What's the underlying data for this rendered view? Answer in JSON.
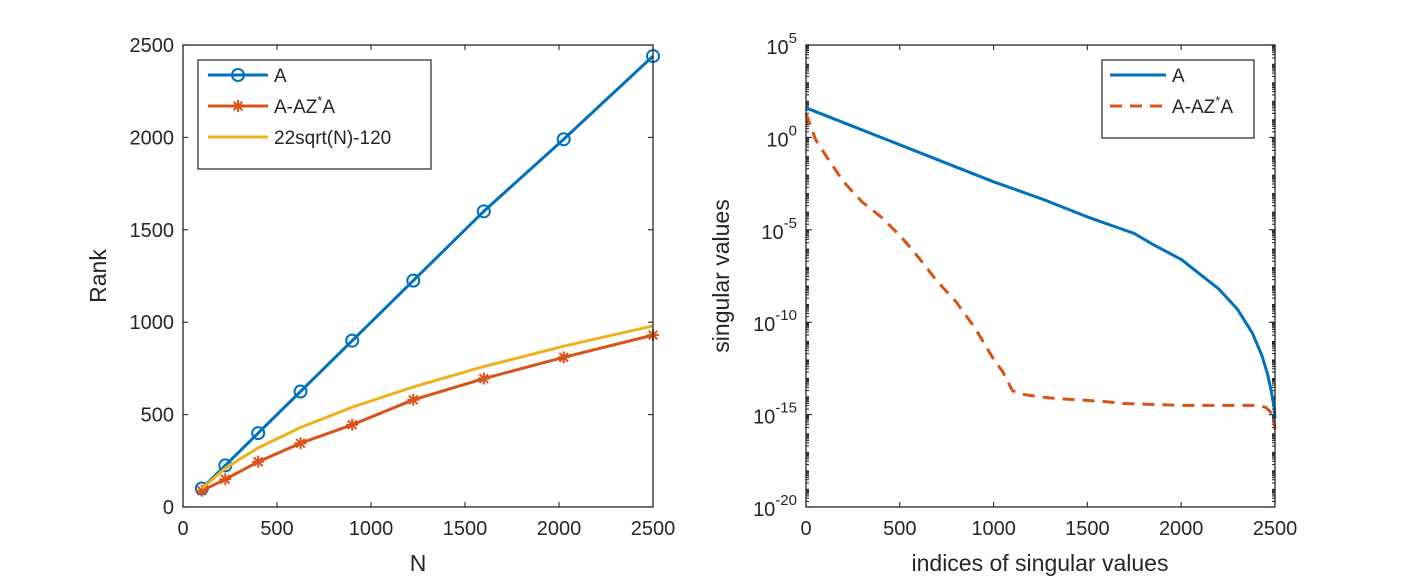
{
  "colors": {
    "blue": "#0072BD",
    "orange": "#D95319",
    "yellow": "#EDB120",
    "axis": "#262626",
    "background": "#ffffff"
  },
  "chart_data": [
    {
      "type": "line",
      "xlabel": "N",
      "ylabel": "Rank",
      "xlim": [
        0,
        2500
      ],
      "ylim": [
        0,
        2500
      ],
      "xticks": [
        0,
        500,
        1000,
        1500,
        2000,
        2500
      ],
      "yticks": [
        0,
        500,
        1000,
        1500,
        2000,
        2500
      ],
      "xtick_labels": [
        "0",
        "500",
        "1000",
        "1500",
        "2000",
        "2500"
      ],
      "ytick_labels": [
        "0",
        "500",
        "1000",
        "1500",
        "2000",
        "2500"
      ],
      "legend_position": "top-left",
      "series": [
        {
          "name": "A",
          "legend_base": "A",
          "legend_sup": "",
          "legend_tail": "",
          "color": "#0072BD",
          "marker": "circle",
          "dash": "",
          "x": [
            100,
            225,
            400,
            625,
            900,
            1225,
            1600,
            2025,
            2500
          ],
          "y": [
            100,
            225,
            400,
            625,
            900,
            1225,
            1600,
            1990,
            2440
          ]
        },
        {
          "name": "A-AZ*A",
          "legend_base": "A-AZ",
          "legend_sup": "*",
          "legend_tail": "A",
          "color": "#D95319",
          "marker": "asterisk",
          "dash": "",
          "x": [
            100,
            225,
            400,
            625,
            900,
            1225,
            1600,
            2025,
            2500
          ],
          "y": [
            88,
            150,
            245,
            345,
            445,
            580,
            695,
            810,
            930
          ]
        },
        {
          "name": "22sqrt(N)-120",
          "legend_base": "22sqrt(N)-120",
          "legend_sup": "",
          "legend_tail": "",
          "color": "#EDB120",
          "marker": "none",
          "dash": "",
          "x": [
            100,
            225,
            400,
            625,
            900,
            1225,
            1600,
            2025,
            2500
          ],
          "y": [
            100,
            210,
            320,
            430,
            540,
            650,
            760,
            870,
            980
          ]
        }
      ]
    },
    {
      "type": "line",
      "xlabel": "indices of singular values",
      "ylabel": "singular values",
      "yscale": "log",
      "xlim": [
        0,
        2500
      ],
      "ylim_exp": [
        -20,
        5
      ],
      "xticks": [
        0,
        500,
        1000,
        1500,
        2000,
        2500
      ],
      "xtick_labels": [
        "0",
        "500",
        "1000",
        "1500",
        "2000",
        "2500"
      ],
      "ytick_exps": [
        5,
        0,
        -5,
        -10,
        -15,
        -20
      ],
      "ytick_base": "10",
      "ytick_exp_labels": [
        "5",
        "0",
        "-5",
        "-10",
        "-15",
        "-20"
      ],
      "legend_position": "top-right",
      "series": [
        {
          "name": "A",
          "legend_base": "A",
          "legend_sup": "",
          "legend_tail": "",
          "color": "#0072BD",
          "dash": "",
          "x": [
            0,
            250,
            500,
            750,
            1000,
            1250,
            1500,
            1750,
            1850,
            2000,
            2100,
            2200,
            2300,
            2380,
            2430,
            2460,
            2480,
            2495,
            2500
          ],
          "log10_y": [
            1.6,
            0.6,
            -0.4,
            -1.4,
            -2.4,
            -3.3,
            -4.3,
            -5.2,
            -5.8,
            -6.6,
            -7.4,
            -8.2,
            -9.3,
            -10.6,
            -11.8,
            -12.8,
            -13.7,
            -14.6,
            -15.2
          ]
        },
        {
          "name": "A-AZ*A",
          "legend_base": "A-AZ",
          "legend_sup": "*",
          "legend_tail": "A",
          "color": "#D95319",
          "dash": "12,8",
          "x": [
            0,
            25,
            50,
            100,
            200,
            300,
            400,
            500,
            600,
            700,
            800,
            900,
            1000,
            1050,
            1100,
            1150,
            1300,
            1600,
            1700,
            2000,
            2300,
            2400,
            2450,
            2490,
            2500
          ],
          "log10_y": [
            1.3,
            0.6,
            -0.1,
            -0.9,
            -2.4,
            -3.5,
            -4.3,
            -5.3,
            -6.5,
            -7.8,
            -8.9,
            -10.3,
            -12.0,
            -12.7,
            -13.7,
            -13.9,
            -14.1,
            -14.3,
            -14.4,
            -14.5,
            -14.5,
            -14.5,
            -14.6,
            -15.0,
            -15.8
          ]
        }
      ]
    }
  ]
}
